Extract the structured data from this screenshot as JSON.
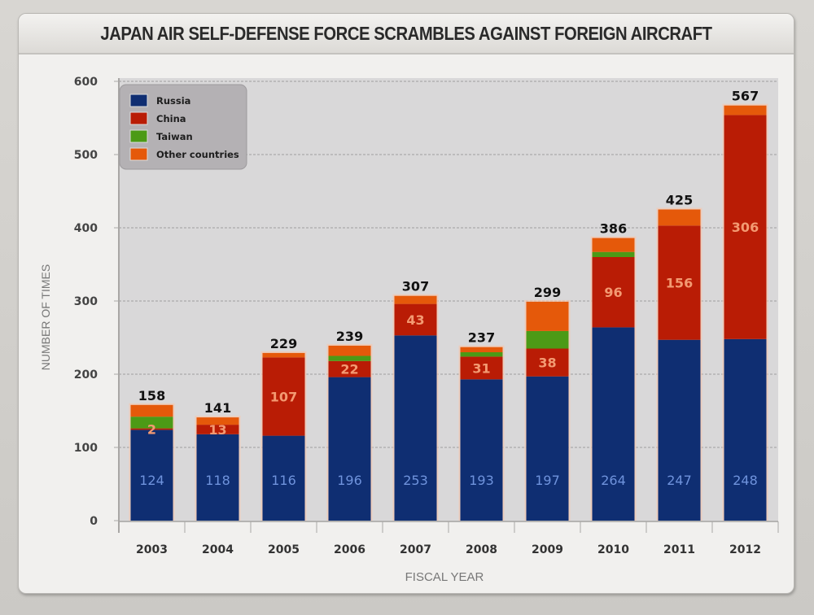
{
  "chart_data": {
    "type": "bar",
    "stacked": true,
    "title": "JAPAN AIR SELF-DEFENSE FORCE SCRAMBLES AGAINST FOREIGN AIRCRAFT",
    "xlabel": "FISCAL YEAR",
    "ylabel": "NUMBER OF TIMES",
    "ylim": [
      0,
      600
    ],
    "yticks": [
      "0",
      "100",
      "200",
      "300",
      "400",
      "500",
      "600"
    ],
    "grid": true,
    "legend_position": "top-left",
    "categories": [
      "2003",
      "2004",
      "2005",
      "2006",
      "2007",
      "2008",
      "2009",
      "2010",
      "2011",
      "2012"
    ],
    "totals": [
      "158",
      "141",
      "229",
      "239",
      "307",
      "237",
      "299",
      "386",
      "425",
      "567"
    ],
    "series": [
      {
        "name": "Russia",
        "color": "#0f2e72",
        "label_color": "#6f93dc",
        "values": [
          124,
          118,
          116,
          196,
          253,
          193,
          197,
          264,
          247,
          248
        ],
        "labels": [
          "124",
          "118",
          "116",
          "196",
          "253",
          "193",
          "197",
          "264",
          "247",
          "248"
        ]
      },
      {
        "name": "China",
        "color": "#b91c05",
        "label_color": "#f39a72",
        "values": [
          2,
          13,
          107,
          22,
          43,
          31,
          38,
          96,
          156,
          306
        ],
        "labels": [
          "2",
          "13",
          "107",
          "22",
          "43",
          "31",
          "38",
          "96",
          "156",
          "306"
        ]
      },
      {
        "name": "Taiwan",
        "color": "#4c9a16",
        "values": [
          16,
          0,
          0,
          7,
          0,
          6,
          24,
          7,
          0,
          0
        ]
      },
      {
        "name": "Other countries",
        "color": "#e5590a",
        "values": [
          16,
          10,
          6,
          14,
          11,
          7,
          40,
          19,
          22,
          13
        ]
      }
    ]
  }
}
